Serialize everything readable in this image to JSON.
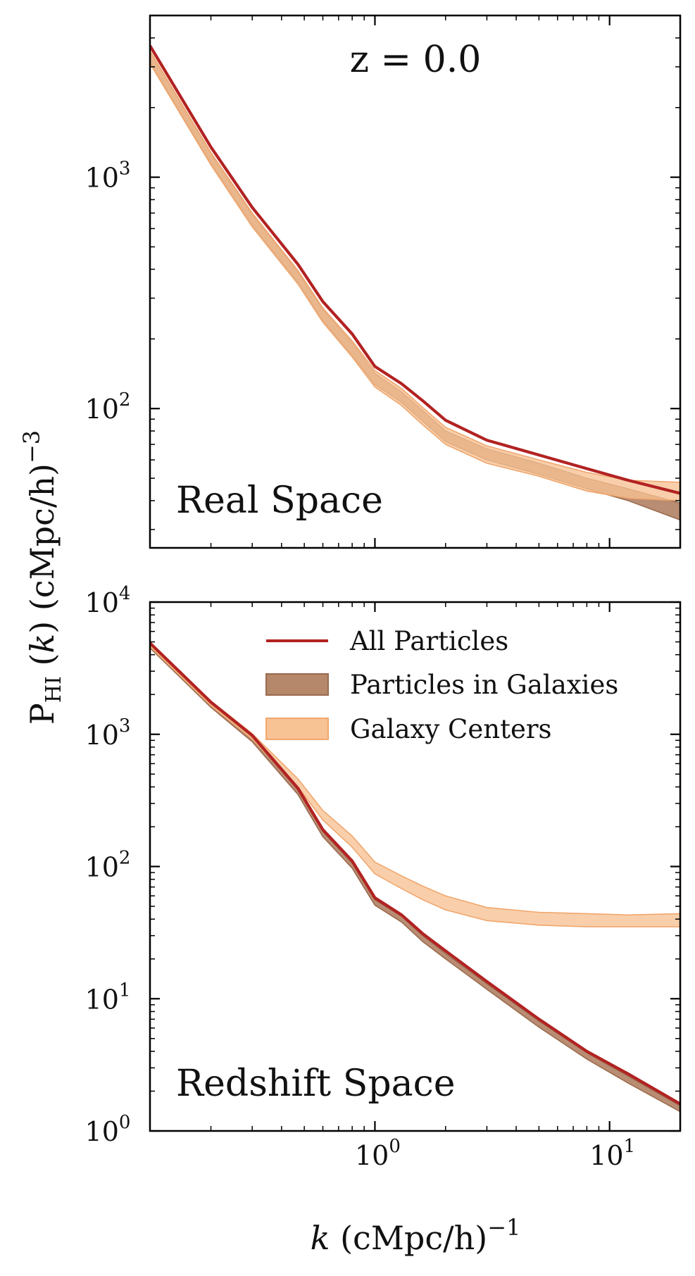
{
  "figure": {
    "ylabel_main": "P",
    "ylabel_sub": "HI",
    "ylabel_mid": " (",
    "ylabel_var": "k",
    "ylabel_tail": ") (cMpc/h)",
    "ylabel_sup": "−3",
    "xlabel_var": "k",
    "xlabel_tail": " (cMpc/h)",
    "xlabel_sup": "−1",
    "x_tick_base": "10",
    "x_tick_exps": [
      "0",
      "1"
    ],
    "colors": {
      "all_particles": "#b22222",
      "in_galaxies_fill": "#b5876b",
      "in_galaxies_edge": "#9b6b4e",
      "galaxy_centers_fill": "#f7c294",
      "galaxy_centers_edge": "#f0a76e"
    }
  },
  "legend": {
    "entries": [
      "All Particles",
      "Particles in Galaxies",
      "Galaxy Centers"
    ]
  },
  "chart_data": [
    {
      "type": "line",
      "title": "z = 0.0",
      "annotation": "Real Space",
      "xscale": "log",
      "yscale": "log",
      "xlim": [
        0.11,
        20
      ],
      "ylim": [
        25,
        5000
      ],
      "y_tick_base": "10",
      "y_tick_exps": [
        "3",
        "2"
      ],
      "y_tick_values": [
        1000,
        100
      ],
      "grid": false,
      "x": [
        0.11,
        0.2,
        0.3,
        0.47,
        0.6,
        0.8,
        1.0,
        1.3,
        1.6,
        2.0,
        3.0,
        5.0,
        8.0,
        12.0,
        20.0
      ],
      "series": [
        {
          "name": "All Particles",
          "kind": "line",
          "values": [
            3700,
            1350,
            740,
            420,
            290,
            210,
            152,
            128,
            108,
            89,
            73,
            63,
            55,
            49,
            43
          ]
        },
        {
          "name": "Particles in Galaxies",
          "kind": "band",
          "lower": [
            3150,
            1150,
            620,
            350,
            240,
            170,
            127,
            106,
            88,
            72,
            60,
            52,
            45,
            40,
            33
          ],
          "upper": [
            3500,
            1270,
            690,
            390,
            268,
            192,
            142,
            118,
            98,
            80,
            67,
            58,
            50,
            45,
            39
          ]
        },
        {
          "name": "Galaxy Centers",
          "kind": "band",
          "lower": [
            3100,
            1130,
            610,
            345,
            236,
            167,
            124,
            103,
            85,
            70,
            58,
            51,
            44,
            41,
            40
          ],
          "upper": [
            3520,
            1280,
            700,
            395,
            272,
            196,
            146,
            122,
            101,
            83,
            69,
            60,
            53,
            49,
            48
          ]
        }
      ]
    },
    {
      "type": "line",
      "title": "",
      "annotation": "Redshift Space",
      "xscale": "log",
      "yscale": "log",
      "xlim": [
        0.11,
        20
      ],
      "ylim": [
        1,
        10000
      ],
      "y_tick_base": "10",
      "y_tick_exps": [
        "4",
        "3",
        "2",
        "1",
        "0"
      ],
      "y_tick_values": [
        10000,
        1000,
        100,
        10,
        1
      ],
      "grid": false,
      "legend_position": "top-right",
      "x": [
        0.11,
        0.2,
        0.3,
        0.47,
        0.6,
        0.8,
        1.0,
        1.3,
        1.6,
        2.0,
        3.0,
        5.0,
        8.0,
        12.0,
        20.0
      ],
      "series": [
        {
          "name": "All Particles",
          "kind": "line",
          "values": [
            4900,
            1750,
            980,
            390,
            190,
            110,
            58,
            43,
            31,
            23,
            13.5,
            7,
            4,
            2.7,
            1.6
          ]
        },
        {
          "name": "Particles in Galaxies",
          "kind": "band",
          "lower": [
            4500,
            1600,
            880,
            350,
            168,
            97,
            51,
            38,
            27,
            20,
            11.8,
            6.1,
            3.5,
            2.3,
            1.4
          ],
          "upper": [
            4850,
            1720,
            960,
            380,
            184,
            106,
            56,
            42,
            30,
            22,
            13,
            6.8,
            3.9,
            2.6,
            1.55
          ]
        },
        {
          "name": "Galaxy Centers",
          "kind": "band",
          "lower": [
            4600,
            1650,
            920,
            400,
            225,
            140,
            88,
            68,
            56,
            47,
            39,
            36,
            35,
            35,
            35
          ],
          "upper": [
            5000,
            1790,
            1010,
            460,
            265,
            170,
            108,
            85,
            71,
            60,
            49,
            45,
            44,
            43,
            44
          ]
        }
      ]
    }
  ]
}
